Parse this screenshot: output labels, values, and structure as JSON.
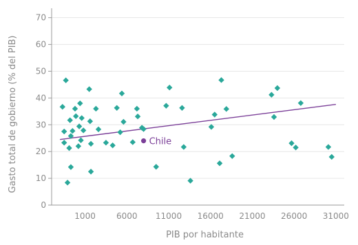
{
  "chart_data": {
    "type": "scatter",
    "title": "",
    "xlabel": "PIB por habitante",
    "ylabel": "Gasto total de gobierno (% del PIB)",
    "xlim": [
      -3000,
      32000
    ],
    "ylim": [
      0,
      73
    ],
    "x_ticks": [
      1000,
      6000,
      11000,
      16000,
      21000,
      26000,
      31000
    ],
    "y_ticks": [
      0,
      10,
      20,
      30,
      40,
      50,
      60,
      70
    ],
    "grid": "horizontal",
    "colors": {
      "points": "#2aa89a",
      "trend": "#7b3f98",
      "highlight": "#7b3f98"
    },
    "series": [
      {
        "values": [
          [
            -1700,
            36.7
          ],
          [
            -1500,
            23.3
          ],
          [
            -1500,
            27.5
          ],
          [
            -1300,
            46.6
          ],
          [
            -1100,
            8.4
          ],
          [
            -900,
            21.3
          ],
          [
            -800,
            31.7
          ],
          [
            -700,
            25.8
          ],
          [
            -700,
            14.2
          ],
          [
            -500,
            27.7
          ],
          [
            -200,
            36.0
          ],
          [
            -100,
            33.2
          ],
          [
            200,
            22.0
          ],
          [
            300,
            29.4
          ],
          [
            400,
            38.0
          ],
          [
            500,
            24.2
          ],
          [
            600,
            32.5
          ],
          [
            800,
            27.9
          ],
          [
            1500,
            43.3
          ],
          [
            1600,
            31.3
          ],
          [
            1700,
            12.5
          ],
          [
            1700,
            22.9
          ],
          [
            2300,
            36.0
          ],
          [
            2600,
            28.3
          ],
          [
            3500,
            23.3
          ],
          [
            4300,
            22.3
          ],
          [
            4800,
            36.3
          ],
          [
            5200,
            27.2
          ],
          [
            5400,
            41.7
          ],
          [
            5600,
            31.1
          ],
          [
            6700,
            23.5
          ],
          [
            7200,
            36.0
          ],
          [
            7300,
            33.1
          ],
          [
            7800,
            28.9
          ],
          [
            8000,
            28.4
          ],
          [
            9500,
            14.3
          ],
          [
            10700,
            37.1
          ],
          [
            11100,
            43.9
          ],
          [
            12600,
            36.3
          ],
          [
            12800,
            21.7
          ],
          [
            13600,
            9.1
          ],
          [
            16100,
            29.2
          ],
          [
            16500,
            33.8
          ],
          [
            17100,
            15.6
          ],
          [
            17300,
            46.7
          ],
          [
            17900,
            35.9
          ],
          [
            18600,
            18.3
          ],
          [
            23300,
            41.2
          ],
          [
            23600,
            32.9
          ],
          [
            24000,
            43.7
          ],
          [
            25700,
            23.1
          ],
          [
            26200,
            21.5
          ],
          [
            26800,
            38.1
          ],
          [
            30100,
            21.7
          ],
          [
            30500,
            18.0
          ]
        ]
      }
    ],
    "highlight": {
      "label": "Chile",
      "x": 8000,
      "y": 24.0
    },
    "trendline": {
      "x": [
        -2000,
        31000
      ],
      "y": [
        24.5,
        37.6
      ]
    }
  }
}
